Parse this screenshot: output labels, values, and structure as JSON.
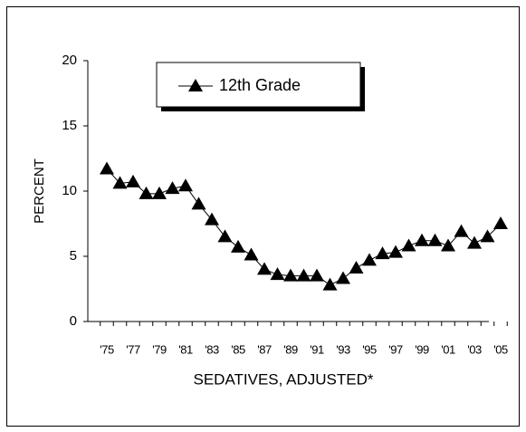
{
  "chart_data": {
    "type": "line",
    "x_label": "SEDATIVES, ADJUSTED*",
    "y_label": "PERCENT",
    "categories": [
      "'75",
      null,
      "'77",
      null,
      "'79",
      null,
      "'81",
      null,
      "'83",
      null,
      "'85",
      null,
      "'87",
      null,
      "'89",
      null,
      "'91",
      null,
      "'93",
      null,
      "'95",
      null,
      "'97",
      null,
      "'99",
      null,
      "'01",
      null,
      "'03",
      null,
      "'05"
    ],
    "series": [
      {
        "name": "12th Grade",
        "color": "#000000",
        "values": [
          11.7,
          10.6,
          10.7,
          9.8,
          9.8,
          10.2,
          10.4,
          9.0,
          7.8,
          6.5,
          5.7,
          5.1,
          4.0,
          3.6,
          3.5,
          3.5,
          3.5,
          2.8,
          3.3,
          4.1,
          4.7,
          5.2,
          5.3,
          5.8,
          6.2,
          6.2,
          5.8,
          6.9,
          6.0,
          6.5,
          7.5
        ]
      }
    ],
    "ylim": [
      0,
      20
    ],
    "yticks": [
      0,
      5,
      10,
      15,
      20
    ],
    "grid": false
  }
}
